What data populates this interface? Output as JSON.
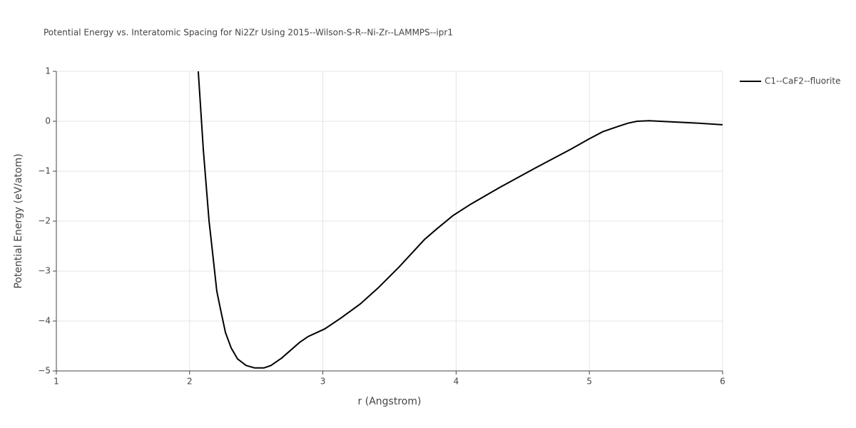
{
  "chart_data": {
    "type": "line",
    "title": "Potential Energy vs. Interatomic Spacing for Ni2Zr Using 2015--Wilson-S-R--Ni-Zr--LAMMPS--ipr1",
    "x_label": "r (Angstrom)",
    "y_label": "Potential Energy (eV/atom)",
    "x": [
      2.065,
      2.103,
      2.146,
      2.167,
      2.204,
      2.226,
      2.269,
      2.312,
      2.36,
      2.424,
      2.488,
      2.558,
      2.611,
      2.692,
      2.825,
      2.89,
      3.013,
      3.136,
      3.28,
      3.414,
      3.575,
      3.762,
      3.853,
      3.976,
      4.11,
      4.324,
      4.592,
      4.86,
      4.993,
      5.1,
      5.208,
      5.288,
      5.358,
      5.449,
      5.61,
      5.823,
      6.0
    ],
    "series": [
      {
        "name": "C1--CaF2--fluorite",
        "color": "#000000",
        "values": [
          1.0,
          -0.57,
          -2.0,
          -2.5,
          -3.4,
          -3.69,
          -4.23,
          -4.54,
          -4.76,
          -4.89,
          -4.94,
          -4.94,
          -4.89,
          -4.74,
          -4.43,
          -4.31,
          -4.16,
          -3.94,
          -3.66,
          -3.34,
          -2.91,
          -2.37,
          -2.16,
          -1.89,
          -1.66,
          -1.33,
          -0.94,
          -0.56,
          -0.36,
          -0.21,
          -0.11,
          -0.04,
          0.0,
          0.01,
          -0.01,
          -0.04,
          -0.07
        ]
      }
    ],
    "xlim": [
      1,
      6
    ],
    "xticks": [
      1,
      2,
      3,
      4,
      5,
      6
    ],
    "ylim": [
      -5,
      1
    ],
    "yticks": [
      {
        "value": -5,
        "label": "−5"
      },
      {
        "value": -4,
        "label": "−4"
      },
      {
        "value": -3,
        "label": "−3"
      },
      {
        "value": -2,
        "label": "−2"
      },
      {
        "value": -1,
        "label": "−1"
      },
      0,
      1
    ],
    "grid": true,
    "legend": "right"
  }
}
